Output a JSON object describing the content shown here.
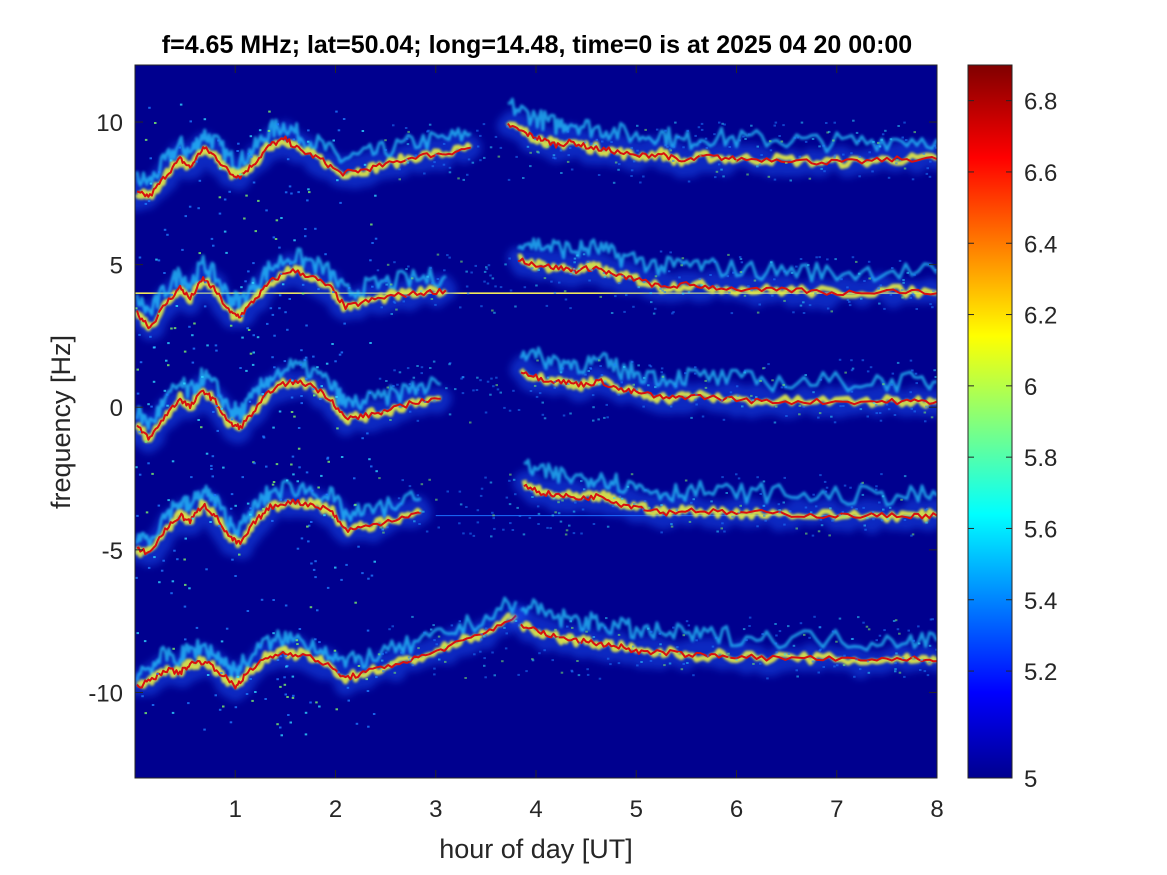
{
  "chart_data": {
    "type": "heatmap",
    "title": "f=4.65 MHz;  lat=50.04; long=14.48, time=0 is at 2025 04 20 00:00",
    "xlabel": "hour of day [UT]",
    "ylabel": "frequency [Hz]",
    "xlim": [
      0,
      8
    ],
    "ylim": [
      -13,
      12
    ],
    "x_ticks": [
      "1",
      "2",
      "3",
      "4",
      "5",
      "6",
      "7",
      "8"
    ],
    "y_ticks": [
      "10",
      "5",
      "0",
      "-5",
      "-10"
    ],
    "colorbar": {
      "range": [
        4.9,
        6.9
      ],
      "ticks": [
        "4.9",
        "5.2",
        "5.4",
        "5.6",
        "5.8",
        "6",
        "6.2",
        "6.4",
        "6.6",
        "6.8"
      ],
      "tick_labels": [
        "5",
        "5.2",
        "5.4",
        "5.6",
        "5.8",
        "6",
        "6.2",
        "6.4",
        "6.6",
        "6.8"
      ],
      "colormap": "jet"
    },
    "background_color": "#00008f",
    "series": [
      {
        "offset": 8.6,
        "early": [
          [
            0.02,
            7.5
          ],
          [
            0.15,
            7.4
          ],
          [
            0.3,
            8.1
          ],
          [
            0.45,
            8.7
          ],
          [
            0.55,
            8.4
          ],
          [
            0.68,
            9.1
          ],
          [
            0.8,
            8.8
          ],
          [
            0.95,
            8.2
          ],
          [
            1.05,
            8.1
          ],
          [
            1.2,
            8.6
          ],
          [
            1.35,
            9.2
          ],
          [
            1.5,
            9.4
          ],
          [
            1.65,
            9.0
          ],
          [
            1.85,
            8.7
          ],
          [
            2.05,
            8.2
          ],
          [
            2.25,
            8.3
          ],
          [
            2.5,
            8.5
          ],
          [
            2.8,
            8.8
          ],
          [
            3.1,
            8.9
          ],
          [
            3.35,
            9.1
          ]
        ],
        "late": [
          [
            3.72,
            9.9
          ],
          [
            3.9,
            9.6
          ],
          [
            4.05,
            9.4
          ],
          [
            4.2,
            9.2
          ],
          [
            4.35,
            9.3
          ],
          [
            4.55,
            9.1
          ],
          [
            4.75,
            9.0
          ],
          [
            5.0,
            8.8
          ],
          [
            5.25,
            8.9
          ],
          [
            5.45,
            8.6
          ],
          [
            5.7,
            8.8
          ],
          [
            6.0,
            8.7
          ],
          [
            6.4,
            8.7
          ],
          [
            6.8,
            8.6
          ],
          [
            7.2,
            8.6
          ],
          [
            7.6,
            8.7
          ],
          [
            8.0,
            8.7
          ]
        ]
      },
      {
        "offset": 4.0,
        "early": [
          [
            0.02,
            3.3
          ],
          [
            0.15,
            2.8
          ],
          [
            0.3,
            3.6
          ],
          [
            0.45,
            4.2
          ],
          [
            0.55,
            3.8
          ],
          [
            0.68,
            4.5
          ],
          [
            0.8,
            4.1
          ],
          [
            0.95,
            3.3
          ],
          [
            1.05,
            3.2
          ],
          [
            1.2,
            3.8
          ],
          [
            1.35,
            4.4
          ],
          [
            1.55,
            4.8
          ],
          [
            1.75,
            4.6
          ],
          [
            1.95,
            4.2
          ],
          [
            2.1,
            3.5
          ],
          [
            2.3,
            3.7
          ],
          [
            2.55,
            3.9
          ],
          [
            2.85,
            4.0
          ],
          [
            3.1,
            4.1
          ]
        ],
        "late": [
          [
            3.82,
            5.2
          ],
          [
            4.0,
            5.0
          ],
          [
            4.2,
            4.9
          ],
          [
            4.4,
            4.8
          ],
          [
            4.6,
            4.9
          ],
          [
            4.8,
            4.6
          ],
          [
            5.0,
            4.5
          ],
          [
            5.25,
            4.2
          ],
          [
            5.5,
            4.3
          ],
          [
            5.8,
            4.2
          ],
          [
            6.2,
            4.1
          ],
          [
            6.6,
            4.1
          ],
          [
            7.0,
            4.0
          ],
          [
            7.5,
            4.1
          ],
          [
            8.0,
            4.0
          ]
        ]
      },
      {
        "offset": 0.2,
        "early": [
          [
            0.02,
            -0.7
          ],
          [
            0.15,
            -1.1
          ],
          [
            0.3,
            -0.3
          ],
          [
            0.45,
            0.3
          ],
          [
            0.55,
            0.0
          ],
          [
            0.68,
            0.6
          ],
          [
            0.8,
            0.2
          ],
          [
            0.95,
            -0.6
          ],
          [
            1.05,
            -0.7
          ],
          [
            1.2,
            -0.1
          ],
          [
            1.35,
            0.6
          ],
          [
            1.55,
            0.9
          ],
          [
            1.75,
            0.8
          ],
          [
            1.95,
            0.3
          ],
          [
            2.1,
            -0.4
          ],
          [
            2.3,
            -0.3
          ],
          [
            2.55,
            -0.1
          ],
          [
            2.8,
            0.2
          ],
          [
            3.05,
            0.3
          ]
        ],
        "late": [
          [
            3.85,
            1.3
          ],
          [
            4.05,
            1.0
          ],
          [
            4.25,
            0.9
          ],
          [
            4.45,
            0.8
          ],
          [
            4.65,
            0.9
          ],
          [
            4.85,
            0.6
          ],
          [
            5.05,
            0.5
          ],
          [
            5.3,
            0.3
          ],
          [
            5.55,
            0.4
          ],
          [
            5.9,
            0.3
          ],
          [
            6.3,
            0.2
          ],
          [
            6.8,
            0.2
          ],
          [
            7.3,
            0.2
          ],
          [
            7.7,
            0.2
          ],
          [
            8.0,
            0.2
          ]
        ]
      },
      {
        "offset": -3.8,
        "early": [
          [
            0.02,
            -5.0
          ],
          [
            0.15,
            -5.1
          ],
          [
            0.3,
            -4.3
          ],
          [
            0.45,
            -3.8
          ],
          [
            0.55,
            -4.0
          ],
          [
            0.68,
            -3.4
          ],
          [
            0.8,
            -3.8
          ],
          [
            0.95,
            -4.6
          ],
          [
            1.05,
            -4.8
          ],
          [
            1.2,
            -4.0
          ],
          [
            1.35,
            -3.5
          ],
          [
            1.55,
            -3.3
          ],
          [
            1.75,
            -3.4
          ],
          [
            1.95,
            -3.6
          ],
          [
            2.1,
            -4.3
          ],
          [
            2.3,
            -4.2
          ],
          [
            2.6,
            -3.9
          ],
          [
            2.85,
            -3.7
          ]
        ],
        "late": [
          [
            3.88,
            -2.7
          ],
          [
            4.05,
            -3.0
          ],
          [
            4.25,
            -3.1
          ],
          [
            4.45,
            -3.2
          ],
          [
            4.65,
            -3.1
          ],
          [
            4.85,
            -3.4
          ],
          [
            5.05,
            -3.5
          ],
          [
            5.3,
            -3.7
          ],
          [
            5.55,
            -3.6
          ],
          [
            5.9,
            -3.7
          ],
          [
            6.3,
            -3.7
          ],
          [
            6.8,
            -3.8
          ],
          [
            7.3,
            -3.8
          ],
          [
            7.7,
            -3.8
          ],
          [
            8.0,
            -3.8
          ]
        ]
      },
      {
        "offset": -8.8,
        "early": [
          [
            0.02,
            -9.8
          ],
          [
            0.15,
            -9.6
          ],
          [
            0.3,
            -9.2
          ],
          [
            0.45,
            -9.3
          ],
          [
            0.55,
            -9.0
          ],
          [
            0.7,
            -8.9
          ],
          [
            0.85,
            -9.3
          ],
          [
            1.0,
            -9.8
          ],
          [
            1.1,
            -9.4
          ],
          [
            1.3,
            -8.8
          ],
          [
            1.5,
            -8.6
          ],
          [
            1.7,
            -8.7
          ],
          [
            1.9,
            -9.0
          ],
          [
            2.1,
            -9.5
          ],
          [
            2.3,
            -9.3
          ],
          [
            2.6,
            -9.0
          ],
          [
            2.9,
            -8.7
          ],
          [
            3.2,
            -8.3
          ],
          [
            3.5,
            -7.9
          ],
          [
            3.8,
            -7.3
          ]
        ],
        "late": [
          [
            3.85,
            -7.6
          ],
          [
            4.05,
            -7.9
          ],
          [
            4.25,
            -8.1
          ],
          [
            4.45,
            -8.2
          ],
          [
            4.65,
            -8.3
          ],
          [
            4.85,
            -8.4
          ],
          [
            5.05,
            -8.6
          ],
          [
            5.3,
            -8.6
          ],
          [
            5.6,
            -8.7
          ],
          [
            5.9,
            -8.7
          ],
          [
            6.3,
            -8.8
          ],
          [
            6.8,
            -8.8
          ],
          [
            7.3,
            -8.9
          ],
          [
            7.7,
            -8.8
          ],
          [
            8.0,
            -8.9
          ]
        ]
      }
    ]
  }
}
